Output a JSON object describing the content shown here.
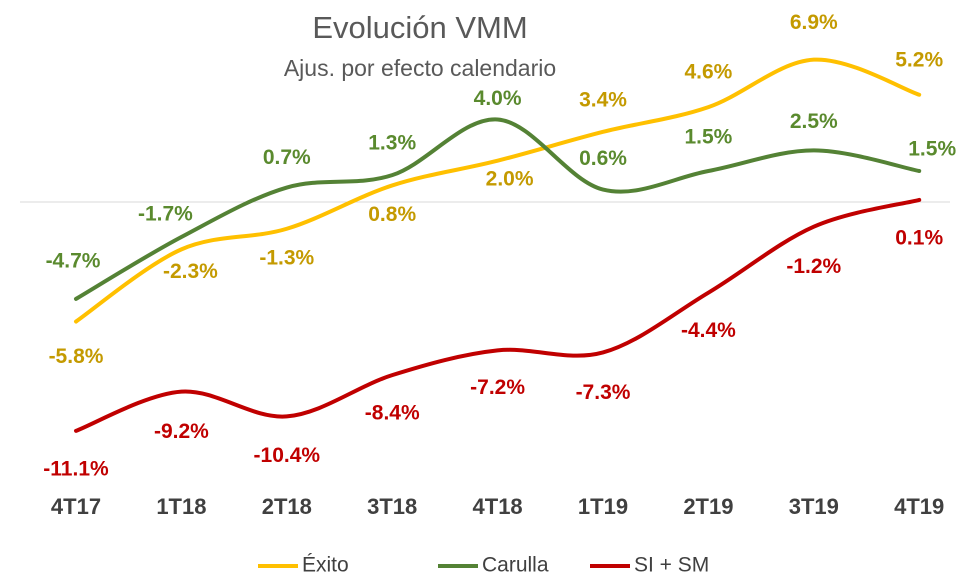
{
  "chart_data": {
    "type": "line",
    "title": "Evolución VMM",
    "subtitle": "Ajus. por efecto calendario",
    "categories": [
      "4T17",
      "1T18",
      "2T18",
      "3T18",
      "4T18",
      "1T19",
      "2T19",
      "3T19",
      "4T19"
    ],
    "ylim": [
      -13,
      8
    ],
    "legend": "bottom",
    "series": [
      {
        "name": "Éxito",
        "color": "#ffc000",
        "label_color": "#c49a00",
        "values": [
          -5.8,
          -2.3,
          -1.3,
          0.8,
          2.0,
          3.4,
          4.6,
          6.9,
          5.2
        ],
        "value_labels": [
          "-5.8%",
          "-2.3%",
          "-1.3%",
          "0.8%",
          "2.0%",
          "3.4%",
          "4.6%",
          "6.9%",
          "5.2%"
        ]
      },
      {
        "name": "Carulla",
        "color": "#548235",
        "label_color": "#5a8a2e",
        "values": [
          -4.7,
          -1.7,
          0.7,
          1.3,
          4.0,
          0.6,
          1.5,
          2.5,
          1.5
        ],
        "value_labels": [
          "-4.7%",
          "-1.7%",
          "0.7%",
          "1.3%",
          "4.0%",
          "0.6%",
          "1.5%",
          "2.5%",
          "1.5%"
        ]
      },
      {
        "name": "SI + SM",
        "color": "#c00000",
        "label_color": "#c00000",
        "values": [
          -11.1,
          -9.2,
          -10.4,
          -8.4,
          -7.2,
          -7.3,
          -4.4,
          -1.2,
          0.1
        ],
        "value_labels": [
          "-11.1%",
          "-9.2%",
          "-10.4%",
          "-8.4%",
          "-7.2%",
          "-7.3%",
          "-4.4%",
          "-1.2%",
          "0.1%"
        ]
      }
    ]
  }
}
